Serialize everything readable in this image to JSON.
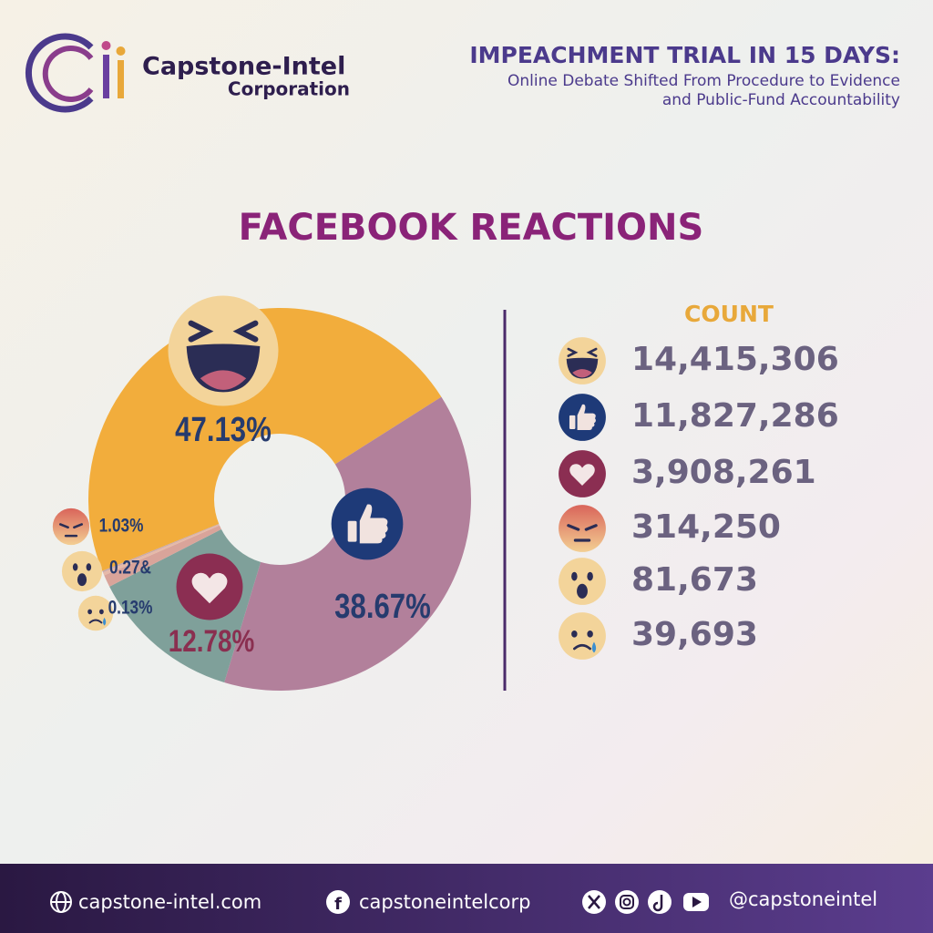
{
  "header": {
    "brand": "Capstone-Intel",
    "brand_sub": "Corporation",
    "title": "IMPEACHMENT TRIAL IN 15 DAYS:",
    "subtitle_lines": [
      "Online Debate Shifted From Procedure to Evidence",
      "and Public-Fund Accountability"
    ]
  },
  "chart_data": {
    "type": "pie",
    "title": "FACEBOOK REACTIONS",
    "values": [
      47.13,
      38.67,
      12.78,
      1.03,
      0.27,
      0.13
    ],
    "value_labels": [
      "47.13%",
      "38.67%",
      "12.78%",
      "1.03%",
      "0.27&",
      "0.13%"
    ],
    "colors": [
      "#f2ad3c",
      "#b2809b",
      "#7fa09a",
      "#d9a49a",
      "#e6b9a8",
      "#c9a8a8"
    ],
    "donut": true
  },
  "counts": {
    "title": "COUNT",
    "values": [
      14415306,
      11827286,
      3908261,
      314250,
      81673,
      39693
    ],
    "value_labels": [
      "14,415,306",
      "11,827,286",
      "3,908,261",
      "314,250",
      "81,673",
      "39,693"
    ]
  },
  "footer": {
    "website": "capstone-intel.com",
    "facebook": "capstoneintelcorp",
    "handle": "@capstoneintel"
  }
}
